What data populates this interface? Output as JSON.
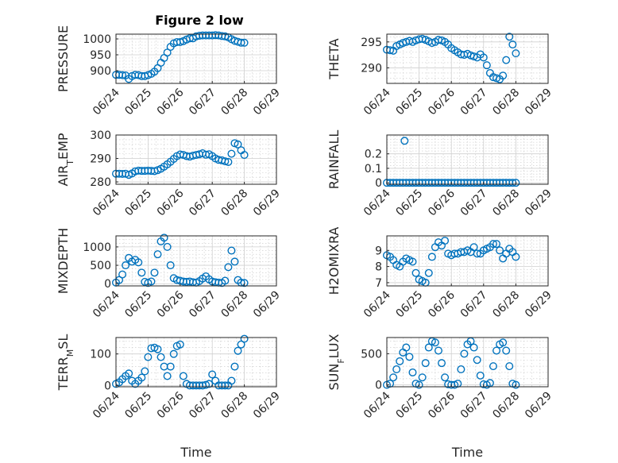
{
  "figure": {
    "title": "Figure 2 low",
    "marker_color": "#0072BD",
    "grid": true,
    "minor_grid": true
  },
  "chart_data": [
    {
      "type": "scatter",
      "ylabel": "PRESSURE",
      "ylabel_parts": [
        {
          "t": "PRESSURE"
        }
      ],
      "ylim": [
        860,
        1015
      ],
      "yticks": [
        900,
        950,
        1000
      ],
      "xlim": [
        0,
        5
      ],
      "xticks": [
        0,
        1,
        2,
        3,
        4,
        5
      ],
      "xticklabels": [
        "06/24",
        "06/25",
        "06/26",
        "06/27",
        "06/28",
        "06/29"
      ],
      "xlabel": "",
      "x": [
        0.0,
        0.1,
        0.2,
        0.3,
        0.4,
        0.5,
        0.6,
        0.7,
        0.8,
        0.9,
        1.0,
        1.1,
        1.2,
        1.3,
        1.4,
        1.5,
        1.6,
        1.7,
        1.8,
        1.9,
        2.0,
        2.1,
        2.2,
        2.3,
        2.4,
        2.5,
        2.6,
        2.7,
        2.8,
        2.9,
        3.0,
        3.1,
        3.2,
        3.3,
        3.4,
        3.5,
        3.6,
        3.7,
        3.8,
        3.9,
        4.0
      ],
      "y": [
        887,
        887,
        886,
        885,
        874,
        883,
        887,
        886,
        883,
        883,
        886,
        890,
        897,
        908,
        925,
        940,
        957,
        975,
        986,
        990,
        990,
        993,
        998,
        1002,
        1002,
        1008,
        1010,
        1011,
        1011,
        1011,
        1011,
        1012,
        1011,
        1009,
        1008,
        1005,
        999,
        994,
        991,
        988,
        988
      ]
    },
    {
      "type": "scatter",
      "ylabel": "THETA",
      "ylabel_parts": [
        {
          "t": "THETA"
        }
      ],
      "ylim": [
        287,
        296.5
      ],
      "yticks": [
        290,
        295
      ],
      "xlim": [
        0,
        5
      ],
      "xticks": [
        0,
        1,
        2,
        3,
        4,
        5
      ],
      "xticklabels": [
        "06/24",
        "06/25",
        "06/26",
        "06/27",
        "06/28",
        "06/29"
      ],
      "xlabel": "",
      "x": [
        0.0,
        0.1,
        0.2,
        0.3,
        0.4,
        0.5,
        0.6,
        0.7,
        0.8,
        0.9,
        1.0,
        1.1,
        1.2,
        1.3,
        1.4,
        1.5,
        1.6,
        1.7,
        1.8,
        1.9,
        2.0,
        2.1,
        2.2,
        2.3,
        2.4,
        2.5,
        2.6,
        2.7,
        2.8,
        2.9,
        3.0,
        3.1,
        3.2,
        3.3,
        3.4,
        3.5,
        3.6,
        3.7,
        3.8,
        3.9,
        4.0
      ],
      "y": [
        293.5,
        293.4,
        293.3,
        294.2,
        294.5,
        294.8,
        295.0,
        295.2,
        295.0,
        295.3,
        295.5,
        295.6,
        295.4,
        295.1,
        294.8,
        295.0,
        295.4,
        295.3,
        295.0,
        294.5,
        293.8,
        293.4,
        293.0,
        292.6,
        292.5,
        292.7,
        292.4,
        292.2,
        292.0,
        292.6,
        292.0,
        290.5,
        289.0,
        288.2,
        288.0,
        287.8,
        288.5,
        291.5,
        296.0,
        294.5,
        292.8
      ]
    },
    {
      "type": "scatter",
      "ylabel": "AIR_TEMP",
      "ylabel_parts": [
        {
          "t": "AIR"
        },
        {
          "t": "T",
          "sub": true
        },
        {
          "t": "EMP"
        }
      ],
      "ylim": [
        279,
        300
      ],
      "yticks": [
        280,
        290,
        300
      ],
      "xlim": [
        0,
        5
      ],
      "xticks": [
        0,
        1,
        2,
        3,
        4,
        5
      ],
      "xticklabels": [
        "06/24",
        "06/25",
        "06/26",
        "06/27",
        "06/28",
        "06/29"
      ],
      "xlabel": "",
      "x": [
        0.0,
        0.1,
        0.2,
        0.3,
        0.4,
        0.5,
        0.6,
        0.7,
        0.8,
        0.9,
        1.0,
        1.1,
        1.2,
        1.3,
        1.4,
        1.5,
        1.6,
        1.7,
        1.8,
        1.9,
        2.0,
        2.1,
        2.2,
        2.3,
        2.4,
        2.5,
        2.6,
        2.7,
        2.8,
        2.9,
        3.0,
        3.1,
        3.2,
        3.3,
        3.4,
        3.5,
        3.6,
        3.7,
        3.8,
        3.9,
        4.0
      ],
      "y": [
        283.5,
        283.5,
        283.4,
        283.5,
        283.0,
        283.6,
        284.5,
        284.8,
        284.7,
        284.7,
        284.8,
        284.7,
        284.6,
        285.0,
        285.6,
        286.5,
        287.5,
        288.6,
        289.8,
        291.0,
        291.7,
        291.5,
        291.0,
        290.8,
        291.2,
        291.5,
        291.8,
        292.2,
        291.6,
        291.8,
        291.0,
        290.0,
        289.4,
        289.2,
        288.8,
        288.5,
        292.0,
        296.5,
        296.0,
        293.5,
        291.5
      ]
    },
    {
      "type": "scatter",
      "ylabel": "RAINFALL",
      "ylabel_parts": [
        {
          "t": "RAINFALL"
        }
      ],
      "ylim": [
        -0.01,
        0.33
      ],
      "yticks": [
        0,
        0.1,
        0.2
      ],
      "yticklabels": [
        "0",
        "0.1",
        "0.2"
      ],
      "xlim": [
        0,
        5
      ],
      "xticks": [
        0,
        1,
        2,
        3,
        4,
        5
      ],
      "xticklabels": [
        "06/24",
        "06/25",
        "06/26",
        "06/27",
        "06/28",
        "06/29"
      ],
      "xlabel": "",
      "x": [
        0.0,
        0.1,
        0.2,
        0.3,
        0.4,
        0.5,
        0.6,
        0.7,
        0.8,
        0.9,
        1.0,
        1.1,
        1.2,
        1.3,
        1.4,
        1.5,
        1.6,
        1.7,
        1.8,
        1.9,
        2.0,
        2.1,
        2.2,
        2.3,
        2.4,
        2.5,
        2.6,
        2.7,
        2.8,
        2.9,
        3.0,
        3.1,
        3.2,
        3.3,
        3.4,
        3.5,
        3.6,
        3.7,
        3.8,
        3.9,
        4.0,
        0.55
      ],
      "y": [
        0,
        0,
        0,
        0,
        0,
        0,
        0,
        0,
        0,
        0,
        0,
        0,
        0,
        0,
        0,
        0,
        0,
        0,
        0,
        0,
        0,
        0,
        0,
        0,
        0,
        0,
        0,
        0,
        0,
        0,
        0,
        0,
        0,
        0,
        0,
        0,
        0,
        0,
        0,
        0,
        0,
        0.29
      ]
    },
    {
      "type": "scatter",
      "ylabel": "MIXDEPTH",
      "ylabel_parts": [
        {
          "t": "MIXDEPTH"
        }
      ],
      "ylim": [
        -60,
        1300
      ],
      "yticks": [
        0,
        500,
        1000
      ],
      "xlim": [
        0,
        5
      ],
      "xticks": [
        0,
        1,
        2,
        3,
        4,
        5
      ],
      "xticklabels": [
        "06/24",
        "06/25",
        "06/26",
        "06/27",
        "06/28",
        "06/29"
      ],
      "xlabel": "",
      "x": [
        0.0,
        0.1,
        0.2,
        0.3,
        0.4,
        0.5,
        0.6,
        0.7,
        0.8,
        0.9,
        1.0,
        1.1,
        1.2,
        1.3,
        1.4,
        1.5,
        1.6,
        1.7,
        1.8,
        1.9,
        2.0,
        2.1,
        2.2,
        2.3,
        2.4,
        2.5,
        2.6,
        2.7,
        2.8,
        2.9,
        3.0,
        3.1,
        3.2,
        3.3,
        3.4,
        3.5,
        3.6,
        3.7,
        3.8,
        3.9,
        4.0
      ],
      "y": [
        30,
        100,
        250,
        500,
        700,
        600,
        650,
        580,
        300,
        50,
        20,
        60,
        300,
        800,
        1150,
        1250,
        1000,
        500,
        150,
        100,
        80,
        60,
        50,
        60,
        40,
        30,
        70,
        140,
        200,
        120,
        60,
        40,
        30,
        20,
        80,
        450,
        900,
        600,
        100,
        30,
        20
      ]
    },
    {
      "type": "scatter",
      "ylabel": "H2OMIXRA",
      "ylabel_parts": [
        {
          "t": "H2OMIXRA"
        }
      ],
      "ylim": [
        6.8,
        9.9
      ],
      "yticks": [
        7,
        8,
        9
      ],
      "xlim": [
        0,
        5
      ],
      "xticks": [
        0,
        1,
        2,
        3,
        4,
        5
      ],
      "xticklabels": [
        "06/24",
        "06/25",
        "06/26",
        "06/27",
        "06/28",
        "06/29"
      ],
      "xlabel": "",
      "x": [
        0.0,
        0.1,
        0.2,
        0.3,
        0.4,
        0.5,
        0.6,
        0.7,
        0.8,
        0.9,
        1.0,
        1.1,
        1.2,
        1.3,
        1.4,
        1.5,
        1.6,
        1.7,
        1.8,
        1.9,
        2.0,
        2.1,
        2.2,
        2.3,
        2.4,
        2.5,
        2.6,
        2.7,
        2.8,
        2.9,
        3.0,
        3.1,
        3.2,
        3.3,
        3.4,
        3.5,
        3.6,
        3.7,
        3.8,
        3.9,
        4.0
      ],
      "y": [
        8.7,
        8.6,
        8.4,
        8.1,
        8.0,
        8.3,
        8.5,
        8.4,
        8.3,
        7.6,
        7.2,
        7.1,
        7.0,
        7.6,
        8.6,
        9.2,
        9.5,
        9.3,
        9.6,
        8.8,
        8.7,
        8.8,
        8.8,
        8.9,
        8.9,
        9.0,
        8.9,
        9.2,
        8.8,
        8.8,
        9.0,
        9.1,
        9.2,
        9.4,
        9.4,
        9.0,
        8.5,
        8.8,
        9.1,
        8.9,
        8.6
      ]
    },
    {
      "type": "scatter",
      "ylabel": "TERR_MSL",
      "ylabel_parts": [
        {
          "t": "TERR"
        },
        {
          "t": "M",
          "sub": true
        },
        {
          "t": "SL"
        }
      ],
      "ylim": [
        -4,
        152
      ],
      "yticks": [
        0,
        100
      ],
      "xlim": [
        0,
        5
      ],
      "xticks": [
        0,
        1,
        2,
        3,
        4,
        5
      ],
      "xticklabels": [
        "06/24",
        "06/25",
        "06/26",
        "06/27",
        "06/28",
        "06/29"
      ],
      "xlabel": "Time",
      "x": [
        0.0,
        0.1,
        0.2,
        0.3,
        0.4,
        0.5,
        0.6,
        0.7,
        0.8,
        0.9,
        1.0,
        1.1,
        1.2,
        1.3,
        1.4,
        1.5,
        1.6,
        1.7,
        1.8,
        1.9,
        2.0,
        2.1,
        2.2,
        2.3,
        2.4,
        2.5,
        2.6,
        2.7,
        2.8,
        2.9,
        3.0,
        3.1,
        3.2,
        3.3,
        3.4,
        3.5,
        3.6,
        3.7,
        3.8,
        3.9,
        4.0
      ],
      "y": [
        5,
        10,
        20,
        30,
        38,
        15,
        5,
        15,
        25,
        45,
        90,
        118,
        120,
        115,
        90,
        60,
        30,
        60,
        100,
        125,
        130,
        30,
        5,
        0,
        0,
        0,
        0,
        0,
        2,
        5,
        35,
        15,
        0,
        0,
        0,
        0,
        15,
        60,
        110,
        130,
        148
      ]
    },
    {
      "type": "scatter",
      "ylabel": "SUN_FLUX",
      "ylabel_parts": [
        {
          "t": "SUN"
        },
        {
          "t": "F",
          "sub": true
        },
        {
          "t": "LUX"
        }
      ],
      "ylim": [
        -30,
        760
      ],
      "yticks": [
        0,
        500
      ],
      "xlim": [
        0,
        5
      ],
      "xticks": [
        0,
        1,
        2,
        3,
        4,
        5
      ],
      "xticklabels": [
        "06/24",
        "06/25",
        "06/26",
        "06/27",
        "06/28",
        "06/29"
      ],
      "xlabel": "Time",
      "x": [
        0.0,
        0.1,
        0.2,
        0.3,
        0.4,
        0.5,
        0.6,
        0.7,
        0.8,
        0.9,
        1.0,
        1.1,
        1.2,
        1.3,
        1.4,
        1.5,
        1.6,
        1.7,
        1.8,
        1.9,
        2.0,
        2.1,
        2.2,
        2.3,
        2.4,
        2.5,
        2.6,
        2.7,
        2.8,
        2.9,
        3.0,
        3.1,
        3.2,
        3.3,
        3.4,
        3.5,
        3.6,
        3.7,
        3.8,
        3.9,
        4.0
      ],
      "y": [
        0,
        20,
        120,
        250,
        380,
        520,
        600,
        450,
        200,
        20,
        0,
        120,
        350,
        600,
        700,
        680,
        550,
        350,
        120,
        10,
        0,
        0,
        20,
        250,
        500,
        650,
        700,
        600,
        400,
        150,
        10,
        0,
        30,
        300,
        550,
        650,
        680,
        550,
        300,
        20,
        0
      ]
    }
  ]
}
